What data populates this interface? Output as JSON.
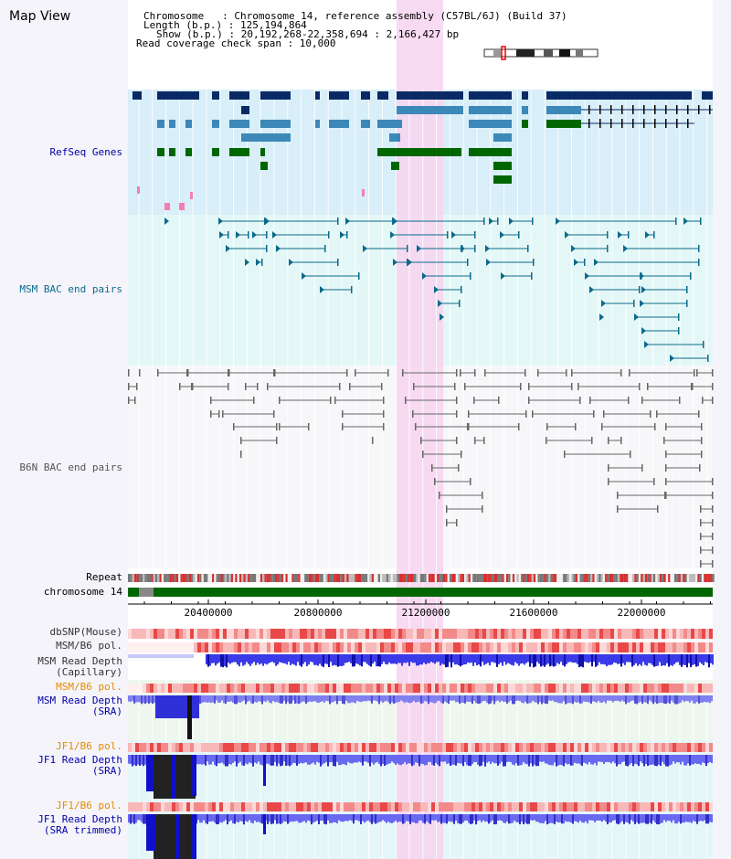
{
  "title": "Map View",
  "info": {
    "chromosome_line": "Chromosome   : Chromosome 14, reference assembly (C57BL/6J) (Build 37)",
    "length_line": "Length (b.p.) : 125,194,864",
    "show_line": "Show (b.p.) : 20,192,268-22,358,694 : 2,166,427 bp",
    "span_line": "Read coverage check span : 10,000"
  },
  "tracks": {
    "refseq": "RefSeq Genes",
    "msm_bac": "MSM BAC end pairs",
    "b6n_bac": "B6N BAC end pairs",
    "repeat": "Repeat",
    "chromosome": "chromosome 14",
    "dbsnp": "dbSNP(Mouse)",
    "msm_b6_pol_1": "MSM/B6 pol.",
    "msm_read_depth_cap_1": "MSM Read Depth",
    "msm_read_depth_cap_2": "(Capillary)",
    "msm_b6_pol_2": "MSM/B6 pol.",
    "msm_read_depth_sra_1": "MSM Read Depth",
    "msm_read_depth_sra_2": "(SRA)",
    "jf1_b6_pol_1": "JF1/B6 pol.",
    "jf1_read_depth_sra_1": "JF1 Read Depth",
    "jf1_read_depth_sra_2": "(SRA)",
    "jf1_b6_pol_2": "JF1/B6 pol.",
    "jf1_read_depth_trim_1": "JF1 Read Depth",
    "jf1_read_depth_trim_2": "(SRA trimmed)"
  },
  "axis_ticks": [
    "20400000",
    "20800000",
    "21200000",
    "21600000",
    "22000000"
  ],
  "colors": {
    "gene_dark": "#0a2a66",
    "gene_mid": "#3c88b8",
    "gene_green": "#006600",
    "msm_pair": "#0b6a8c",
    "b6n_pair": "#666666",
    "highlight": "#f7d4f0",
    "pol_label": "#e68a00",
    "depth_label": "#0000aa"
  }
}
